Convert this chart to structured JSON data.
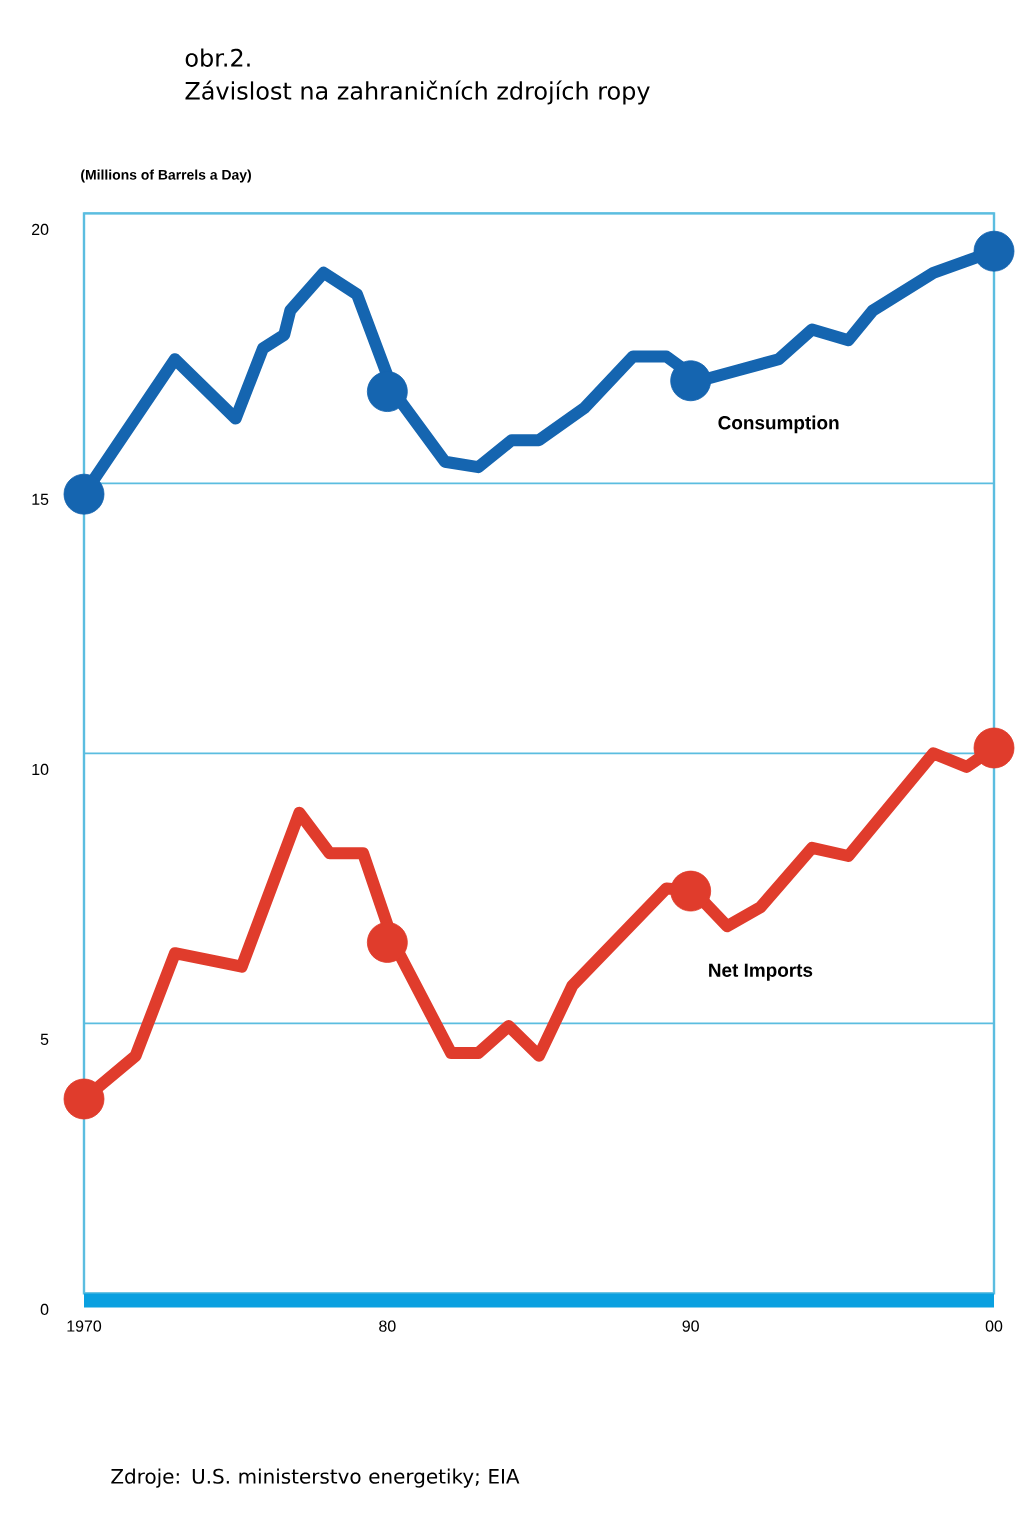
{
  "chart_data": {
    "type": "line",
    "title": "obr.2.",
    "subtitle": "Závislost na zahraničních zdrojích ropy",
    "ylabel": "(Millions of Barrels a Day)",
    "annotations": [
      "Zdroje: U.S. ministerstvo energetiky; EIA"
    ],
    "xlim": [
      1970,
      2000
    ],
    "xticks": [
      1970,
      {
        "value": 1980,
        "label": "80"
      },
      {
        "value": 1990,
        "label": "90"
      },
      {
        "value": 2000,
        "label": "00"
      }
    ],
    "ylim": [
      0,
      20
    ],
    "yticks": [
      0,
      5,
      10,
      15,
      20
    ],
    "grid": "y",
    "line_style": "solid",
    "series": [
      {
        "name": "Consumption",
        "color": "#1565b0",
        "x": [
          1970,
          1973,
          1975,
          1975.9,
          1976.6,
          1976.8,
          1977.9,
          1979,
          1980.2,
          1981.9,
          1983,
          1984.1,
          1985,
          1986.5,
          1988.1,
          1989.2,
          1990.3,
          1991.6,
          1992.9,
          1994,
          1995.2,
          1996,
          1998,
          2000
        ],
        "values": [
          14.8,
          17.3,
          16.2,
          17.5,
          17.75,
          18.2,
          18.9,
          18.5,
          16.7,
          15.4,
          15.3,
          15.8,
          15.8,
          16.4,
          17.35,
          17.35,
          16.9,
          17.1,
          17.3,
          17.85,
          17.65,
          18.2,
          18.9,
          19.3
        ]
      },
      {
        "name": "Net Imports",
        "color": "#e03c2c",
        "x": [
          1970,
          1971.7,
          1973,
          1975.2,
          1977.1,
          1978.1,
          1979.2,
          1980.2,
          1982.1,
          1983,
          1984,
          1985,
          1986.1,
          1989.2,
          1990.1,
          1991.2,
          1992.3,
          1994,
          1995.2,
          1998,
          1999.1,
          2000
        ],
        "values": [
          3.6,
          4.4,
          6.3,
          6.05,
          8.9,
          8.15,
          8.15,
          6.5,
          4.45,
          4.45,
          4.95,
          4.4,
          5.7,
          7.5,
          7.45,
          6.8,
          7.15,
          8.25,
          8.1,
          10.0,
          9.75,
          10.1
        ]
      },
      {
        "type": "scatter",
        "marker": "circle",
        "color": "#1565b0",
        "x": [
          1970,
          1980,
          1990,
          2000
        ],
        "values": [
          14.8,
          16.7,
          16.9,
          19.3
        ]
      },
      {
        "type": "scatter",
        "marker": "circle",
        "color": "#e03c2c",
        "x": [
          1970,
          1980,
          1990,
          2000
        ],
        "values": [
          3.6,
          6.5,
          7.45,
          10.1
        ]
      }
    ]
  }
}
